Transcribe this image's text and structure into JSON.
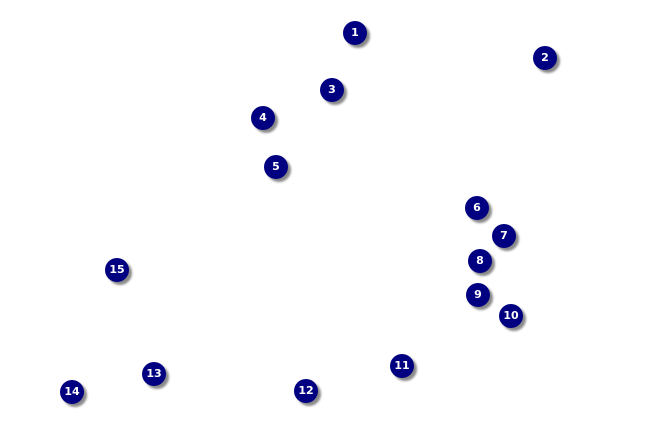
{
  "dot_color": "#000080",
  "dots": [
    {
      "label": "1"
    },
    {
      "label": "2"
    },
    {
      "label": "3"
    },
    {
      "label": "4"
    },
    {
      "label": "5"
    },
    {
      "label": "6"
    },
    {
      "label": "7"
    },
    {
      "label": "8"
    },
    {
      "label": "9"
    },
    {
      "label": "10"
    },
    {
      "label": "11"
    },
    {
      "label": "12"
    },
    {
      "label": "13"
    },
    {
      "label": "14"
    },
    {
      "label": "15"
    }
  ]
}
